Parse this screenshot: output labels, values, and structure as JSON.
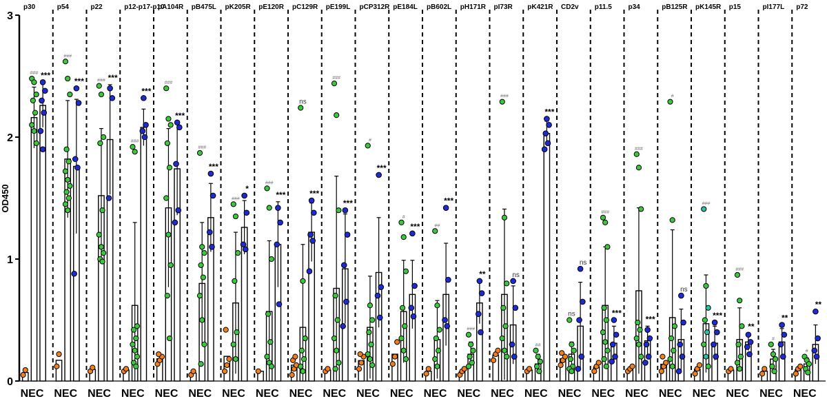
{
  "chart_data": {
    "type": "bar",
    "ylabel": "OD450",
    "ylim": [
      0,
      3
    ],
    "yticks": [
      0,
      1,
      2,
      3
    ],
    "group_label": "NEC",
    "colors": {
      "orange": "#f07f1e",
      "green": "#3cc83c",
      "blue": "#1e2ad2",
      "teal": "#22c6a0"
    },
    "panels": [
      {
        "name": "p30",
        "nec": [
          0.05,
          0.09
        ],
        "green": [
          2.48,
          2.45,
          2.35,
          2.3,
          2.2,
          2.1,
          2.05,
          1.95
        ],
        "green_mean": 2.16,
        "green_err": 0.25,
        "green_sig": "###",
        "blue": [
          2.45,
          2.38,
          2.3,
          2.2,
          2.05,
          1.9
        ],
        "blue_mean": 2.26,
        "blue_err": 0.18,
        "blue_sig": "***"
      },
      {
        "name": "p54",
        "nec": [
          0.12,
          0.22
        ],
        "green": [
          2.62,
          2.48,
          2.35,
          1.9,
          1.8,
          1.72,
          1.65,
          1.6,
          1.55,
          1.5,
          1.45,
          1.4
        ],
        "green_mean": 1.82,
        "green_err": 0.48,
        "green_sig": "###",
        "blue": [
          2.4,
          2.28,
          1.82,
          1.75,
          0.88
        ],
        "blue_mean": 1.76,
        "blue_err": 0.55,
        "blue_sig": "***"
      },
      {
        "name": "p22",
        "nec": [
          0.08,
          0.11
        ],
        "green": [
          2.42,
          2.35,
          2.0,
          1.95,
          1.4,
          1.2,
          1.1,
          1.05,
          1.0,
          0.98
        ],
        "green_mean": 1.52,
        "green_err": 0.55,
        "green_sig": "###",
        "blue": [
          2.4,
          2.32,
          1.5
        ],
        "blue_mean": 1.98,
        "blue_err": 0.45,
        "blue_sig": "***"
      },
      {
        "name": "p12-p17-p10",
        "nec": [
          0.08,
          0.1
        ],
        "green": [
          1.92,
          1.88,
          0.45,
          0.42,
          0.35,
          0.3,
          0.25,
          0.2,
          0.15,
          0.12
        ],
        "green_mean": 0.62,
        "green_err": 0.68,
        "green_sig": "###",
        "blue": [
          2.32,
          2.1,
          2.05,
          2.0
        ],
        "blue_mean": 2.08,
        "blue_err": 0.15,
        "blue_sig": "***"
      },
      {
        "name": "pA104R",
        "nec": [
          0.14,
          0.17,
          0.2,
          0.22
        ],
        "green": [
          2.4,
          2.15,
          2.1,
          1.95,
          1.75,
          1.5,
          1.2,
          0.95,
          0.7,
          0.35
        ],
        "green_mean": 1.42,
        "green_err": 0.65,
        "green_sig": "###",
        "blue": [
          2.12,
          2.08,
          1.78,
          1.4,
          1.3
        ],
        "blue_mean": 1.74,
        "blue_err": 0.38,
        "blue_sig": "***"
      },
      {
        "name": "pB475L",
        "nec": [
          0.05,
          0.08
        ],
        "green": [
          1.87,
          1.1,
          1.05,
          0.95,
          0.85,
          0.7,
          0.5,
          0.3,
          0.14
        ],
        "green_mean": 0.8,
        "green_err": 0.5,
        "green_sig": "###",
        "blue": [
          1.7,
          1.52,
          1.22,
          1.1
        ],
        "blue_mean": 1.34,
        "blue_err": 0.28,
        "blue_sig": "***"
      },
      {
        "name": "pK205R",
        "nec": [
          0.08,
          0.13,
          0.18,
          0.42
        ],
        "green": [
          1.45,
          1.35,
          1.05,
          0.82,
          0.4,
          0.3,
          0.18
        ],
        "green_mean": 0.64,
        "green_err": 0.58,
        "green_sig": "###",
        "blue": [
          1.52,
          1.38,
          1.12,
          1.08
        ],
        "blue_mean": 1.26,
        "blue_err": 0.22,
        "blue_sig": "*"
      },
      {
        "name": "pE120R",
        "nec": [
          0.08
        ],
        "green": [
          1.58,
          1.42,
          1.0,
          0.55,
          0.32,
          0.2,
          0.15,
          0.12
        ],
        "green_mean": 0.57,
        "green_err": 0.58,
        "green_sig": "###",
        "blue": [
          1.42,
          1.3,
          1.12,
          0.63
        ],
        "blue_mean": 1.12,
        "blue_err": 0.35,
        "blue_sig": "***"
      },
      {
        "name": "pC129R",
        "nec": [
          0.05,
          0.1,
          0.13,
          0.17,
          0.2
        ],
        "green": [
          2.24,
          0.82,
          0.35,
          0.25,
          0.18,
          0.12,
          0.08
        ],
        "green_mean": 0.44,
        "green_err": 0.68,
        "green_sig": "ns",
        "blue": [
          1.48,
          1.38,
          1.2,
          1.15,
          0.9
        ],
        "blue_mean": 1.22,
        "blue_err": 0.24,
        "blue_sig": "***"
      },
      {
        "name": "pE199L",
        "nec": [
          0.08,
          0.1
        ],
        "green": [
          2.44,
          2.18,
          1.4,
          0.7,
          0.5,
          0.35,
          0.25,
          0.15,
          0.1
        ],
        "green_mean": 0.76,
        "green_err": 0.92,
        "green_sig": "###",
        "blue": [
          1.4,
          1.2,
          0.95,
          0.65,
          0.45
        ],
        "blue_mean": 0.92,
        "blue_err": 0.45,
        "blue_sig": "***"
      },
      {
        "name": "pCP312R",
        "nec": [
          0.1,
          0.15,
          0.2,
          0.22
        ],
        "green": [
          1.93,
          0.62,
          0.5,
          0.4,
          0.3,
          0.22,
          0.18,
          0.13
        ],
        "green_mean": 0.44,
        "green_err": 0.42,
        "green_sig": "#",
        "blue": [
          1.69,
          0.77,
          0.7,
          0.52
        ],
        "blue_mean": 0.89,
        "blue_err": 0.45,
        "blue_sig": "***"
      },
      {
        "name": "pE184L",
        "nec": [
          0.14,
          0.2,
          0.32
        ],
        "green": [
          1.3,
          1.18,
          0.9,
          0.6,
          0.45,
          0.35,
          0.25,
          0.18
        ],
        "green_mean": 0.57,
        "green_err": 0.42,
        "green_sig": "#",
        "blue": [
          1.21,
          0.78,
          0.6,
          0.53
        ],
        "blue_mean": 0.71,
        "blue_err": 0.28,
        "blue_sig": "***"
      },
      {
        "name": "pB602L",
        "nec": [
          0.06,
          0.1
        ],
        "green": [
          1.23,
          0.62,
          0.42,
          0.35,
          0.25,
          0.18,
          0.12
        ],
        "green_mean": 0.34,
        "green_err": 0.32,
        "green_sig": "##",
        "blue": [
          1.42,
          0.83,
          0.5,
          0.45
        ],
        "blue_mean": 0.71,
        "blue_err": 0.42,
        "blue_sig": "***"
      },
      {
        "name": "pH171R",
        "nec": [
          0.05,
          0.08,
          0.1
        ],
        "green": [
          0.38,
          0.3,
          0.25,
          0.2,
          0.15,
          0.12
        ],
        "green_mean": 0.22,
        "green_err": 0.1,
        "green_sig": "###",
        "blue": [
          0.82,
          0.72,
          0.55,
          0.4
        ],
        "blue_mean": 0.64,
        "blue_err": 0.17,
        "blue_sig": "**"
      },
      {
        "name": "pI73R",
        "nec": [
          0.17,
          0.22,
          0.25
        ],
        "green": [
          2.29,
          1.34,
          0.8,
          0.6,
          0.45,
          0.35,
          0.25,
          0.2
        ],
        "green_mean": 0.71,
        "green_err": 0.7,
        "green_sig": "###",
        "blue": [
          0.82,
          0.6,
          0.3,
          0.2
        ],
        "blue_mean": 0.46,
        "blue_err": 0.32,
        "blue_sig": "ns"
      },
      {
        "name": "pK421R",
        "nec": [
          0.08,
          0.1
        ],
        "green": [
          0.25,
          0.2,
          0.16,
          0.12,
          0.08
        ],
        "green_mean": 0.14,
        "green_err": 0.08,
        "green_sig": "##",
        "blue": [
          2.15,
          2.1,
          2.03,
          1.95,
          1.9
        ],
        "blue_mean": 2.03,
        "blue_err": 0.1,
        "blue_sig": "***"
      },
      {
        "name": "CD2v",
        "nec": [
          0.13,
          0.17,
          0.2,
          0.23
        ],
        "green": [
          0.5,
          0.3,
          0.25,
          0.18,
          0.12,
          0.1,
          0.08
        ],
        "green_mean": 0.22,
        "green_err": 0.1,
        "green_sig": "ns",
        "blue": [
          0.92,
          0.65,
          0.5,
          0.2,
          0.1
        ],
        "blue_mean": 0.45,
        "blue_err": 0.36,
        "blue_sig": "ns"
      },
      {
        "name": "p11.5",
        "nec": [
          0.08,
          0.12,
          0.15
        ],
        "green": [
          1.34,
          1.3,
          1.1,
          0.6,
          0.5,
          0.4,
          0.32,
          0.25,
          0.18,
          0.12
        ],
        "green_mean": 0.62,
        "green_err": 0.48,
        "green_sig": "###",
        "blue": [
          0.5,
          0.38,
          0.3,
          0.2,
          0.16
        ],
        "blue_mean": 0.31,
        "blue_err": 0.14,
        "blue_sig": "***"
      },
      {
        "name": "p34",
        "nec": [
          0.08,
          0.1,
          0.12
        ],
        "green": [
          1.86,
          1.75,
          1.41,
          0.48,
          0.42,
          0.35,
          0.3,
          0.2
        ],
        "green_mean": 0.74,
        "green_err": 0.68,
        "green_sig": "###",
        "blue": [
          0.42,
          0.35,
          0.3,
          0.2,
          0.15
        ],
        "blue_mean": 0.33,
        "blue_err": 0.12,
        "blue_sig": "***"
      },
      {
        "name": "pB125R",
        "nec": [
          0.08,
          0.12,
          0.15,
          0.2
        ],
        "green": [
          2.29,
          1.32,
          0.45,
          0.35,
          0.25,
          0.18,
          0.12
        ],
        "green_mean": 0.52,
        "green_err": 0.72,
        "green_sig": "#",
        "blue": [
          0.7,
          0.48,
          0.3,
          0.2,
          0.08
        ],
        "blue_mean": 0.34,
        "blue_err": 0.25,
        "blue_sig": "ns"
      },
      {
        "name": "pK145R",
        "nec": [
          0.06,
          0.1,
          0.13
        ],
        "green": [
          1.41,
          0.78,
          0.6,
          0.5,
          0.4,
          0.3,
          0.2,
          0.12
        ],
        "green_mean": 0.47,
        "green_err": 0.4,
        "green_sig": "###",
        "blue": [
          0.48,
          0.4,
          0.3,
          0.2
        ],
        "blue_mean": 0.31,
        "blue_err": 0.14,
        "blue_sig": "***"
      },
      {
        "name": "p15",
        "nec": [
          0.08,
          0.1
        ],
        "green": [
          0.87,
          0.66,
          0.45,
          0.3,
          0.2,
          0.15,
          0.1
        ],
        "green_mean": 0.34,
        "green_err": 0.26,
        "green_sig": "###",
        "blue": [
          0.38,
          0.32,
          0.28,
          0.22
        ],
        "blue_mean": 0.32,
        "blue_err": 0.07,
        "blue_sig": "**"
      },
      {
        "name": "pI177L",
        "nec": [
          0.06,
          0.1
        ],
        "green": [
          0.3,
          0.22,
          0.18,
          0.12,
          0.08
        ],
        "green_mean": 0.18,
        "green_err": 0.08,
        "green_sig": "#",
        "blue": [
          0.46,
          0.38,
          0.3,
          0.2
        ],
        "blue_mean": 0.32,
        "blue_err": 0.11,
        "blue_sig": "**"
      },
      {
        "name": "p72",
        "nec": [
          0.06,
          0.1,
          0.12
        ],
        "green": [
          0.2,
          0.17,
          0.14,
          0.1,
          0.07
        ],
        "green_mean": 0.14,
        "green_err": 0.05,
        "green_sig": "#",
        "blue": [
          0.57,
          0.35,
          0.25,
          0.2
        ],
        "blue_mean": 0.3,
        "blue_err": 0.16,
        "blue_sig": "**"
      }
    ]
  }
}
